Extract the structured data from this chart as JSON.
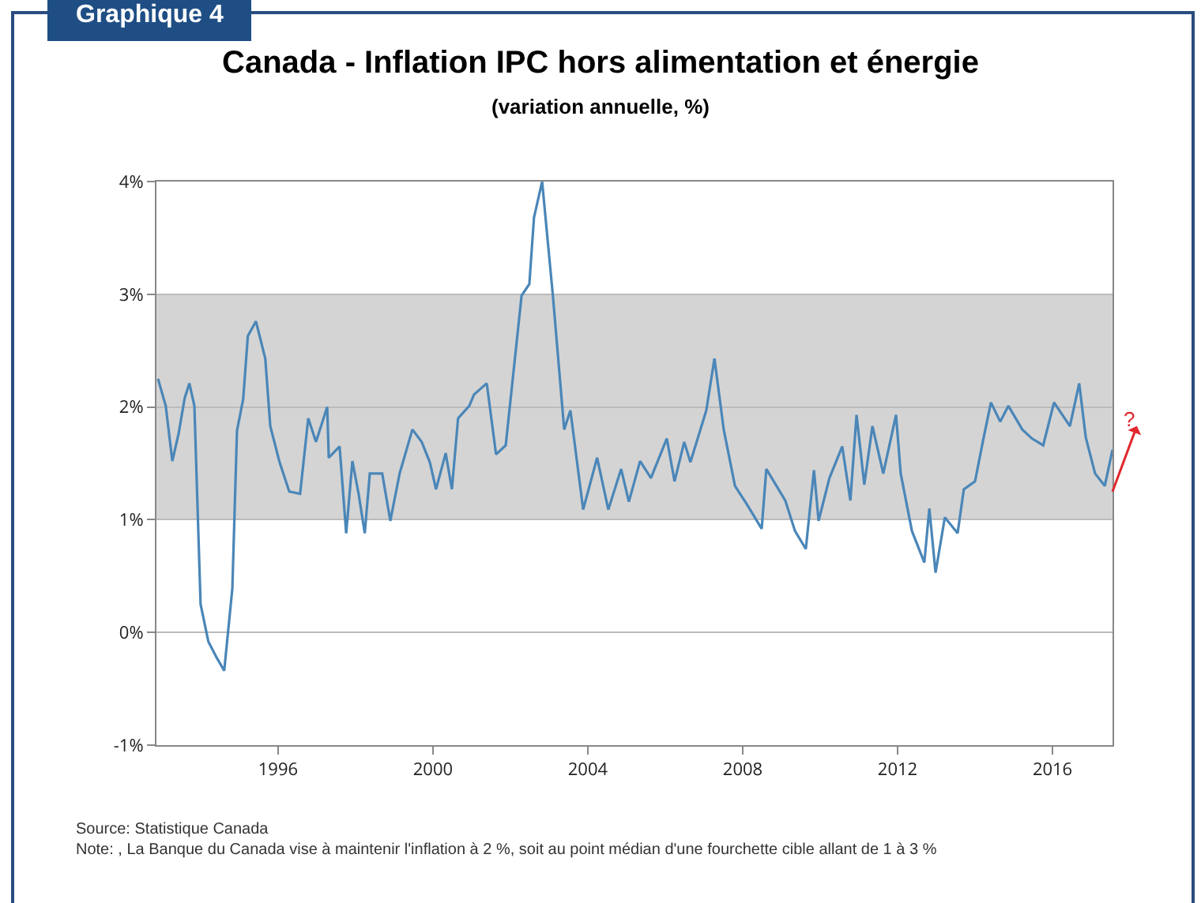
{
  "chart_data": {
    "type": "line",
    "title": "Canada - Inflation IPC hors alimentation et énergie",
    "subtitle": "(variation annuelle, %)",
    "x": [
      1992.9,
      1993.1,
      1993.27,
      1993.43,
      1993.59,
      1993.71,
      1993.84,
      1994.0,
      1994.2,
      1994.41,
      1994.61,
      1994.82,
      1994.94,
      1995.1,
      1995.22,
      1995.43,
      1995.67,
      1995.8,
      1996.04,
      1996.29,
      1996.57,
      1996.78,
      1996.98,
      1997.27,
      1997.31,
      1997.59,
      1997.76,
      1997.92,
      1998.08,
      1998.24,
      1998.37,
      1998.69,
      1998.9,
      1999.14,
      1999.47,
      1999.71,
      1999.92,
      2000.08,
      2000.33,
      2000.49,
      2000.65,
      2000.94,
      2001.06,
      2001.39,
      2001.63,
      2001.88,
      2002.29,
      2002.49,
      2002.61,
      2002.82,
      2003.1,
      2003.39,
      2003.55,
      2003.88,
      2004.24,
      2004.53,
      2004.86,
      2005.06,
      2005.35,
      2005.63,
      2006.04,
      2006.24,
      2006.49,
      2006.65,
      2007.06,
      2007.27,
      2007.51,
      2007.8,
      2008.12,
      2008.49,
      2008.61,
      2009.1,
      2009.35,
      2009.63,
      2009.84,
      2009.96,
      2010.24,
      2010.57,
      2010.78,
      2010.94,
      2011.14,
      2011.35,
      2011.63,
      2011.96,
      2012.08,
      2012.37,
      2012.69,
      2012.82,
      2012.98,
      2013.22,
      2013.55,
      2013.71,
      2014.0,
      2014.2,
      2014.41,
      2014.65,
      2014.86,
      2015.22,
      2015.47,
      2015.76,
      2016.04,
      2016.45,
      2016.69,
      2016.86,
      2017.1,
      2017.35,
      2017.55
    ],
    "series": [
      {
        "color": "#4a86b8",
        "values": [
          2.25,
          2.01,
          1.52,
          1.76,
          2.08,
          2.21,
          2.01,
          0.25,
          -0.08,
          -0.22,
          -0.34,
          0.39,
          1.79,
          2.07,
          2.63,
          2.76,
          2.43,
          1.83,
          1.51,
          1.25,
          1.23,
          1.9,
          1.69,
          2.0,
          1.55,
          1.65,
          0.88,
          1.52,
          1.23,
          0.88,
          1.41,
          1.41,
          0.99,
          1.41,
          1.8,
          1.69,
          1.51,
          1.27,
          1.59,
          1.27,
          1.9,
          2.01,
          2.11,
          2.21,
          1.58,
          1.66,
          2.99,
          3.09,
          3.68,
          4.0,
          2.98,
          1.8,
          1.97,
          1.09,
          1.55,
          1.09,
          1.45,
          1.16,
          1.52,
          1.37,
          1.72,
          1.34,
          1.69,
          1.51,
          1.97,
          2.43,
          1.8,
          1.3,
          1.13,
          0.92,
          1.45,
          1.17,
          0.9,
          0.74,
          1.44,
          0.99,
          1.37,
          1.65,
          1.17,
          1.93,
          1.31,
          1.83,
          1.41,
          1.93,
          1.41,
          0.9,
          0.62,
          1.1,
          0.53,
          1.02,
          0.88,
          1.27,
          1.34,
          1.69,
          2.04,
          1.87,
          2.01,
          1.8,
          1.72,
          1.66,
          2.04,
          1.83,
          2.21,
          1.73,
          1.41,
          1.3,
          1.62
        ]
      }
    ],
    "xlim": [
      1992.86,
      2017.55
    ],
    "xticks": [
      1996,
      2000,
      2004,
      2008,
      2012,
      2016
    ],
    "ylim": [
      -1,
      4
    ],
    "yticks": [
      {
        "value": -1,
        "label": "-1%"
      },
      {
        "value": 0,
        "label": "0%"
      },
      {
        "value": 1,
        "label": "1%"
      },
      {
        "value": 2,
        "label": "2%"
      },
      {
        "value": 3,
        "label": "3%"
      },
      {
        "value": 4,
        "label": "4%"
      }
    ],
    "grid": "y",
    "marker": "none",
    "line_style": "solid",
    "bands": [
      {
        "axis": "y",
        "from": 1,
        "to": 3,
        "color": "#d4d4d4"
      }
    ],
    "annotations": [
      "Graphique 4",
      {
        "text": "?",
        "x": 2017.55,
        "y": 1.25
      },
      "Source: Statistique Canada",
      "Note: , La Banque du Canada vise à maintenir l'inflation à 2 %, soit au point médian d'une fourchette cible allant de 1 à 3 %"
    ]
  }
}
